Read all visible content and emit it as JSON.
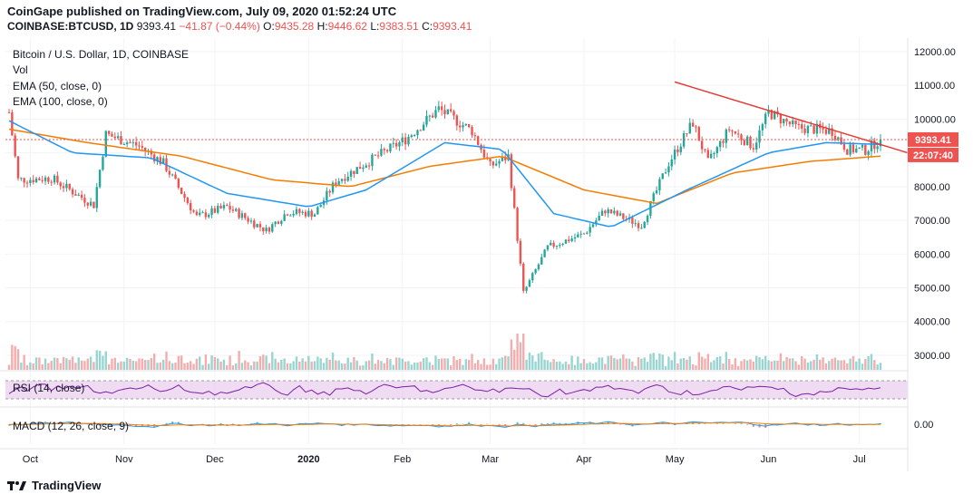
{
  "header": {
    "publisher_line": "CoinGape published on TradingView.com, July 09, 2020 01:52:24 UTC",
    "symbol": "COINBASE:BTCUSD, 1D",
    "last": "9393.41",
    "change": "−41.87 (−0.44%)",
    "o_label": "O:",
    "o_val": "9435.28",
    "h_label": "H:",
    "h_val": "9446.62",
    "l_label": "L:",
    "l_val": "9383.51",
    "c_label": "C:",
    "c_val": "9393.41"
  },
  "legend": {
    "title": "Bitcoin / U.S. Dollar, 1D, COINBASE",
    "vol": "Vol",
    "ema50": "EMA (50, close, 0)",
    "ema100": "EMA (100, close, 0)"
  },
  "rsi_label": "RSI (14, close)",
  "macd_label": "MACD (12, 26, close, 9)",
  "price_badge": "9393.41",
  "time_badge": "22:07:40",
  "brand": "TradingView",
  "colors": {
    "up": "#26a69a",
    "down": "#ef5350",
    "ema50": "#2196f3",
    "ema100": "#f57c00",
    "trendline": "#e53935",
    "rsi": "#7b1fa2",
    "rsi_band": "#e1bee7"
  },
  "chart_data": {
    "type": "candlestick",
    "yticks": [
      "12000.00",
      "11000.00",
      "10000.00",
      "9000.00",
      "8000.00",
      "7000.00",
      "6000.00",
      "5000.00",
      "4000.00",
      "3000.00"
    ],
    "ylim": [
      2650,
      12400
    ],
    "xlabels": [
      "Oct",
      "Nov",
      "Dec",
      "2020",
      "Feb",
      "Mar",
      "Apr",
      "May",
      "Jun",
      "Jul"
    ],
    "macd_tick": "0.00",
    "approx_close_path": [
      [
        "2019-09-24",
        10200
      ],
      [
        "2019-09-27",
        8200
      ],
      [
        "2019-10-08",
        8250
      ],
      [
        "2019-10-22",
        7450
      ],
      [
        "2019-10-26",
        9550
      ],
      [
        "2019-11-06",
        9200
      ],
      [
        "2019-11-14",
        8700
      ],
      [
        "2019-11-25",
        7100
      ],
      [
        "2019-12-05",
        7400
      ],
      [
        "2019-12-18",
        6700
      ],
      [
        "2019-12-25",
        7250
      ],
      [
        "2020-01-03",
        7200
      ],
      [
        "2020-01-10",
        8150
      ],
      [
        "2020-01-20",
        8700
      ],
      [
        "2020-02-02",
        9400
      ],
      [
        "2020-02-13",
        10300
      ],
      [
        "2020-02-24",
        9650
      ],
      [
        "2020-03-01",
        8600
      ],
      [
        "2020-03-07",
        8900
      ],
      [
        "2020-03-12",
        4850
      ],
      [
        "2020-03-20",
        6200
      ],
      [
        "2020-04-01",
        6600
      ],
      [
        "2020-04-08",
        7300
      ],
      [
        "2020-04-20",
        6850
      ],
      [
        "2020-04-29",
        8700
      ],
      [
        "2020-05-07",
        9900
      ],
      [
        "2020-05-12",
        8700
      ],
      [
        "2020-05-19",
        9700
      ],
      [
        "2020-05-27",
        9200
      ],
      [
        "2020-06-01",
        10200
      ],
      [
        "2020-06-10",
        9750
      ],
      [
        "2020-06-22",
        9650
      ],
      [
        "2020-06-27",
        9100
      ],
      [
        "2020-07-03",
        9080
      ],
      [
        "2020-07-08",
        9393
      ]
    ],
    "ema50_path": [
      [
        "2019-09-24",
        9950
      ],
      [
        "2019-10-15",
        9000
      ],
      [
        "2019-11-10",
        8850
      ],
      [
        "2019-12-05",
        7800
      ],
      [
        "2020-01-01",
        7400
      ],
      [
        "2020-01-20",
        7900
      ],
      [
        "2020-02-15",
        9300
      ],
      [
        "2020-03-05",
        9100
      ],
      [
        "2020-03-22",
        7200
      ],
      [
        "2020-04-10",
        6800
      ],
      [
        "2020-05-05",
        7900
      ],
      [
        "2020-06-01",
        9000
      ],
      [
        "2020-06-20",
        9300
      ],
      [
        "2020-07-08",
        9250
      ]
    ],
    "ema100_path": [
      [
        "2019-09-24",
        9700
      ],
      [
        "2019-10-20",
        9300
      ],
      [
        "2019-11-20",
        8900
      ],
      [
        "2019-12-20",
        8200
      ],
      [
        "2020-01-15",
        8000
      ],
      [
        "2020-02-10",
        8600
      ],
      [
        "2020-03-05",
        8900
      ],
      [
        "2020-04-01",
        7900
      ],
      [
        "2020-04-25",
        7500
      ],
      [
        "2020-05-20",
        8400
      ],
      [
        "2020-06-15",
        8750
      ],
      [
        "2020-07-08",
        8900
      ]
    ],
    "trendline": [
      [
        "2020-05-01",
        11100
      ],
      [
        "2020-07-18",
        9000
      ]
    ],
    "last_price": 9393.41,
    "range_start": "2019-09-24",
    "range_end": "2020-07-08"
  }
}
